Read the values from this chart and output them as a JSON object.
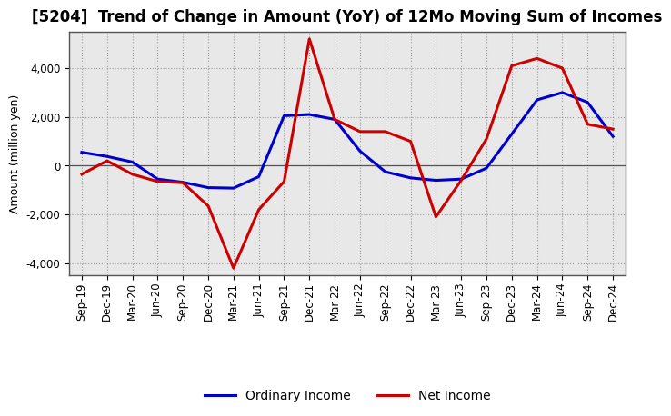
{
  "title": "[5204]  Trend of Change in Amount (YoY) of 12Mo Moving Sum of Incomes",
  "xlabel": "",
  "ylabel": "Amount (million yen)",
  "ylim": [
    -4500,
    5500
  ],
  "yticks": [
    -4000,
    -2000,
    0,
    2000,
    4000
  ],
  "x_labels": [
    "Sep-19",
    "Dec-19",
    "Mar-20",
    "Jun-20",
    "Sep-20",
    "Dec-20",
    "Mar-21",
    "Jun-21",
    "Sep-21",
    "Dec-21",
    "Mar-22",
    "Jun-22",
    "Sep-22",
    "Dec-22",
    "Mar-23",
    "Jun-23",
    "Sep-23",
    "Dec-23",
    "Mar-24",
    "Jun-24",
    "Sep-24",
    "Dec-24"
  ],
  "ordinary_income": [
    550,
    380,
    150,
    -550,
    -680,
    -900,
    -920,
    -450,
    2050,
    2100,
    1900,
    600,
    -250,
    -500,
    -600,
    -550,
    -100,
    1300,
    2700,
    3000,
    2600,
    1200
  ],
  "net_income": [
    -350,
    200,
    -350,
    -650,
    -700,
    -1650,
    -4200,
    -1800,
    -650,
    5200,
    1900,
    1400,
    1400,
    1000,
    -2100,
    -600,
    1100,
    4100,
    4400,
    4000,
    1700,
    1500
  ],
  "ordinary_color": "#0000cc",
  "net_color": "#cc0000",
  "line_width": 2.2,
  "plot_bg_color": "#e8e8e8",
  "fig_bg_color": "#ffffff",
  "grid_color": "#ffffff",
  "grid_major_color": "#999999",
  "title_fontsize": 12,
  "label_fontsize": 9,
  "tick_fontsize": 8.5
}
